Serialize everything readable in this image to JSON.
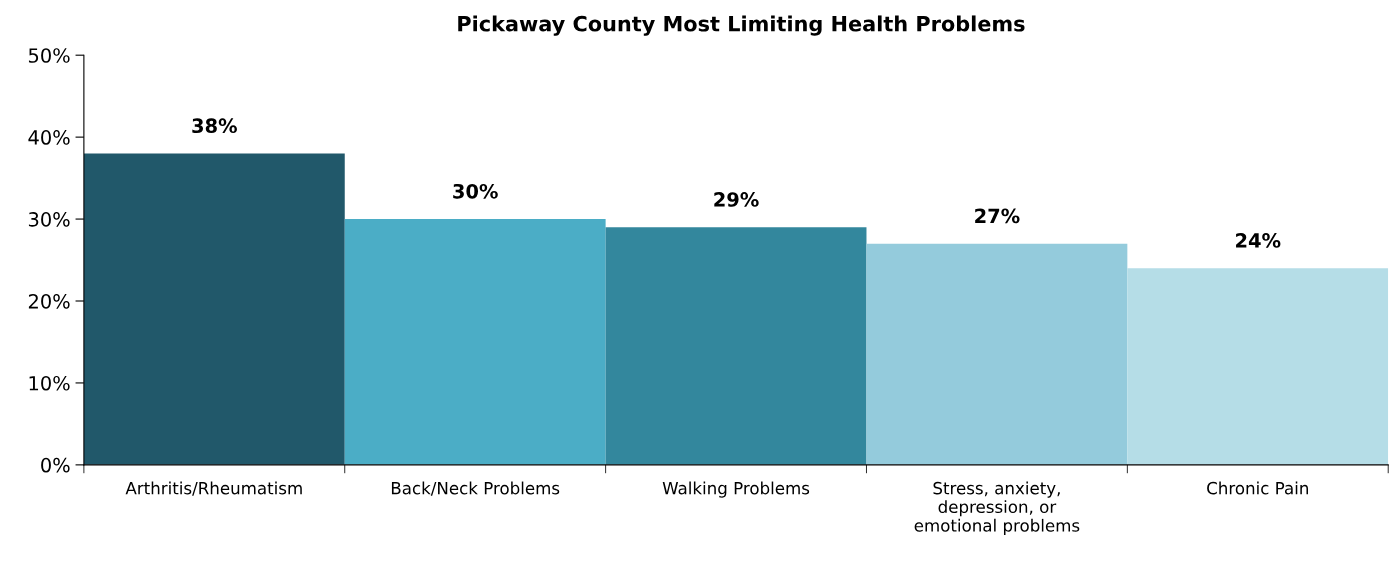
{
  "chart_data": {
    "type": "bar",
    "title": "Pickaway County Most Limiting Health Problems",
    "categories": [
      "Arthritis/Rheumatism",
      "Back/Neck Problems",
      "Walking Problems",
      "Stress, anxiety,\ndepression, or\nemotional problems",
      "Chronic Pain"
    ],
    "values": [
      38,
      30,
      29,
      27,
      24
    ],
    "colors": [
      "#21586a",
      "#4badc6",
      "#33879d",
      "#94cbdc",
      "#b5dde7"
    ],
    "value_labels": [
      "38%",
      "30%",
      "29%",
      "27%",
      "24%"
    ],
    "ylim": [
      0,
      50
    ],
    "yticks": [
      {
        "value": 0,
        "label": "0%"
      },
      {
        "value": 10,
        "label": "10%"
      },
      {
        "value": 20,
        "label": "20%"
      },
      {
        "value": 30,
        "label": "30%"
      },
      {
        "value": 40,
        "label": "40%"
      },
      {
        "value": 50,
        "label": "50%"
      }
    ],
    "grid": false
  }
}
